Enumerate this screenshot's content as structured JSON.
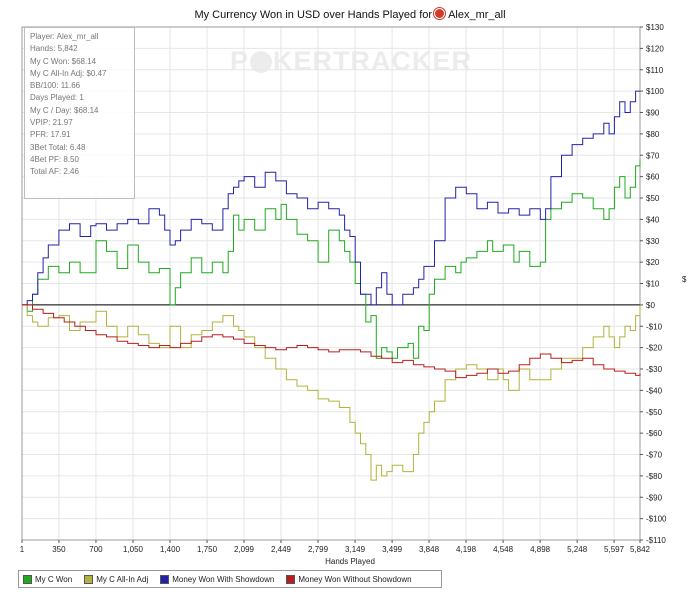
{
  "chart_data": {
    "type": "line",
    "title": "My Currency Won in USD over Hands Played for",
    "player": "Alex_mr_all",
    "xlabel": "Hands Played",
    "ylabel": "$",
    "xlim": [
      1,
      5842
    ],
    "ylim": [
      -110,
      130
    ],
    "x_ticks": [
      1,
      350,
      700,
      1050,
      1400,
      1750,
      2099,
      2449,
      2799,
      3149,
      3499,
      3848,
      4198,
      4548,
      4898,
      5248,
      5597,
      5842
    ],
    "x_tick_labels": [
      "1",
      "350",
      "700",
      "1,050",
      "1,400",
      "1,750",
      "2,099",
      "2,449",
      "2,799",
      "3,149",
      "3,499",
      "3,848",
      "4,198",
      "4,548",
      "4,898",
      "5,248",
      "5,597",
      "5,842"
    ],
    "y_ticks": [
      130,
      120,
      110,
      100,
      90,
      80,
      70,
      60,
      50,
      40,
      30,
      20,
      10,
      0,
      -10,
      -20,
      -30,
      -40,
      -50,
      -60,
      -70,
      -80,
      -90,
      -100,
      -110
    ],
    "y_tick_labels": [
      "$130",
      "$120",
      "$110",
      "$100",
      "$90",
      "$80",
      "$70",
      "$60",
      "$50",
      "$40",
      "$30",
      "$20",
      "$10",
      "$0",
      "-$10",
      "-$20",
      "-$30",
      "-$40",
      "-$50",
      "-$60",
      "-$70",
      "-$80",
      "-$90",
      "-$100",
      "-$110"
    ],
    "grid": true,
    "legend_position": "bottom-left",
    "series": [
      {
        "name": "My C Won",
        "color": "#1faa1f",
        "x": [
          1,
          50,
          100,
          150,
          250,
          350,
          450,
          550,
          700,
          800,
          900,
          1000,
          1100,
          1200,
          1300,
          1400,
          1450,
          1500,
          1600,
          1700,
          1800,
          1900,
          1950,
          2000,
          2050,
          2100,
          2200,
          2300,
          2400,
          2450,
          2500,
          2600,
          2700,
          2800,
          2900,
          3000,
          3050,
          3100,
          3150,
          3200,
          3250,
          3300,
          3350,
          3400,
          3450,
          3500,
          3550,
          3650,
          3700,
          3750,
          3800,
          3850,
          3900,
          4000,
          4100,
          4150,
          4200,
          4300,
          4400,
          4450,
          4550,
          4650,
          4700,
          4800,
          4900,
          4950,
          5000,
          5100,
          5200,
          5300,
          5400,
          5500,
          5550,
          5600,
          5650,
          5700,
          5750,
          5800,
          5842
        ],
        "y": [
          0,
          -3,
          5,
          12,
          18,
          15,
          20,
          15,
          30,
          25,
          17,
          28,
          20,
          15,
          17,
          0,
          8,
          15,
          22,
          15,
          20,
          15,
          25,
          42,
          35,
          40,
          35,
          45,
          40,
          47,
          40,
          33,
          30,
          20,
          35,
          30,
          25,
          20,
          10,
          5,
          -8,
          -5,
          -25,
          -20,
          -22,
          -25,
          -20,
          -18,
          -25,
          -10,
          -12,
          5,
          12,
          18,
          15,
          20,
          22,
          25,
          30,
          25,
          28,
          20,
          25,
          18,
          20,
          40,
          45,
          48,
          52,
          50,
          45,
          40,
          45,
          55,
          60,
          50,
          55,
          65,
          68
        ]
      },
      {
        "name": "My C All-In Adj",
        "color": "#b3b23a",
        "x": [
          1,
          50,
          100,
          150,
          250,
          350,
          450,
          550,
          700,
          800,
          900,
          1000,
          1100,
          1200,
          1300,
          1400,
          1500,
          1600,
          1700,
          1800,
          1900,
          2000,
          2050,
          2100,
          2200,
          2300,
          2400,
          2500,
          2600,
          2700,
          2800,
          2900,
          3000,
          3100,
          3150,
          3200,
          3250,
          3300,
          3350,
          3400,
          3450,
          3500,
          3600,
          3700,
          3750,
          3800,
          3850,
          3900,
          4000,
          4100,
          4200,
          4300,
          4400,
          4500,
          4550,
          4600,
          4700,
          4800,
          4900,
          5000,
          5100,
          5200,
          5300,
          5400,
          5500,
          5550,
          5600,
          5650,
          5700,
          5750,
          5800,
          5842
        ],
        "y": [
          0,
          -5,
          -8,
          -10,
          -6,
          -5,
          -12,
          -8,
          -3,
          -10,
          -15,
          -10,
          -14,
          -18,
          -20,
          -10,
          -20,
          -14,
          -12,
          -8,
          -5,
          -10,
          -12,
          -15,
          -20,
          -25,
          -30,
          -35,
          -38,
          -40,
          -44,
          -45,
          -48,
          -55,
          -60,
          -65,
          -70,
          -82,
          -75,
          -80,
          -78,
          -75,
          -78,
          -70,
          -60,
          -55,
          -50,
          -45,
          -35,
          -30,
          -28,
          -30,
          -35,
          -30,
          -35,
          -40,
          -30,
          -35,
          -35,
          -30,
          -25,
          -25,
          -20,
          -15,
          -10,
          -15,
          -20,
          -15,
          -10,
          -12,
          -5,
          0
        ]
      },
      {
        "name": "Money Won With Showdown",
        "color": "#2323a8",
        "x": [
          1,
          50,
          100,
          150,
          200,
          250,
          350,
          450,
          550,
          650,
          700,
          800,
          900,
          1000,
          1100,
          1200,
          1300,
          1350,
          1400,
          1450,
          1500,
          1600,
          1700,
          1800,
          1900,
          1950,
          2000,
          2050,
          2100,
          2200,
          2300,
          2400,
          2500,
          2600,
          2700,
          2800,
          2900,
          3000,
          3050,
          3100,
          3150,
          3200,
          3300,
          3350,
          3400,
          3450,
          3500,
          3600,
          3700,
          3750,
          3800,
          3900,
          4000,
          4100,
          4200,
          4300,
          4400,
          4500,
          4600,
          4700,
          4800,
          4900,
          4950,
          5000,
          5100,
          5200,
          5300,
          5400,
          5500,
          5550,
          5600,
          5650,
          5700,
          5750,
          5800,
          5842
        ],
        "y": [
          0,
          2,
          5,
          15,
          22,
          28,
          35,
          38,
          32,
          37,
          38,
          35,
          38,
          40,
          38,
          45,
          42,
          35,
          28,
          30,
          35,
          40,
          38,
          35,
          45,
          52,
          55,
          58,
          60,
          55,
          62,
          58,
          52,
          50,
          45,
          48,
          45,
          42,
          35,
          32,
          20,
          5,
          0,
          8,
          15,
          5,
          0,
          5,
          8,
          12,
          18,
          30,
          50,
          55,
          52,
          45,
          48,
          43,
          45,
          42,
          45,
          40,
          45,
          60,
          70,
          75,
          78,
          80,
          85,
          80,
          88,
          95,
          90,
          95,
          100,
          100
        ]
      },
      {
        "name": "Money Won Without Showdown",
        "color": "#b81e1e",
        "x": [
          1,
          100,
          200,
          300,
          400,
          500,
          600,
          700,
          800,
          900,
          1000,
          1100,
          1200,
          1300,
          1400,
          1500,
          1600,
          1700,
          1800,
          1900,
          2000,
          2100,
          2200,
          2300,
          2400,
          2500,
          2600,
          2700,
          2800,
          2900,
          3000,
          3100,
          3200,
          3300,
          3400,
          3500,
          3600,
          3700,
          3800,
          3900,
          4000,
          4100,
          4200,
          4300,
          4400,
          4500,
          4600,
          4700,
          4800,
          4900,
          5000,
          5100,
          5200,
          5300,
          5400,
          5500,
          5600,
          5700,
          5800,
          5842
        ],
        "y": [
          0,
          -2,
          -4,
          -6,
          -8,
          -10,
          -12,
          -14,
          -15,
          -17,
          -18,
          -19,
          -20,
          -19,
          -20,
          -18,
          -17,
          -15,
          -14,
          -15,
          -16,
          -18,
          -19,
          -20,
          -21,
          -20,
          -19,
          -20,
          -21,
          -22,
          -21,
          -21,
          -22,
          -24,
          -25,
          -27,
          -26,
          -28,
          -29,
          -30,
          -31,
          -34,
          -33,
          -32,
          -30,
          -32,
          -31,
          -28,
          -25,
          -23,
          -25,
          -27,
          -26,
          -25,
          -28,
          -30,
          -31,
          -32,
          -33,
          -32
        ]
      }
    ]
  },
  "stats": [
    "Player: Alex_mr_all",
    "Hands: 5,842",
    "My C Won: $68.14",
    "My C All-In Adj: $0.47",
    "BB/100: 11.66",
    "Days Played: 1",
    "My C / Day: $68.14",
    "VPIP: 21.97",
    "PFR: 17.91",
    "3Bet Total: 6.48",
    "4Bet PF: 8.50",
    "Total AF: 2.46"
  ],
  "watermark": {
    "left": "P",
    "right": "KERTRACKER"
  },
  "colors": {
    "zero_line": "#000000",
    "grid": "#e6e6e6"
  }
}
